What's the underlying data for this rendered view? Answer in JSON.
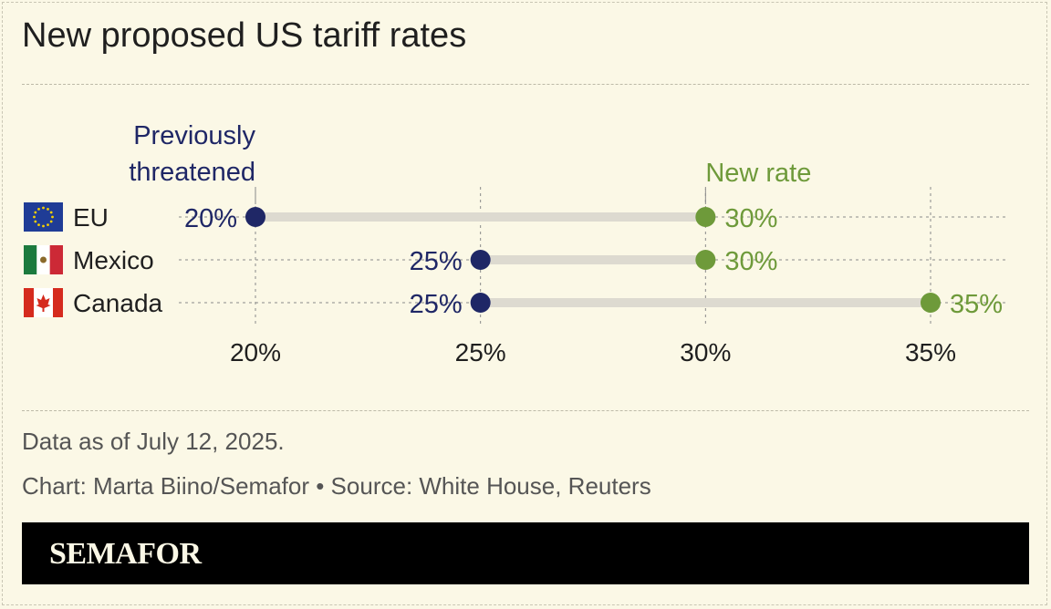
{
  "title": "New proposed US tariff rates",
  "colors": {
    "previous": "#1f2766",
    "new": "#6e9a3a",
    "bar": "#dddad0",
    "grid": "#8a8a8a",
    "axis_text": "#1f1f1f"
  },
  "annotations": {
    "previous_line1": "Previously",
    "previous_line2": "threatened",
    "new_rate": "New rate"
  },
  "chart_data": {
    "type": "dumbbell",
    "title": "New proposed US tariff rates",
    "categories": [
      "EU",
      "Mexico",
      "Canada"
    ],
    "flags": [
      "eu-flag-icon",
      "mexico-flag-icon",
      "canada-flag-icon"
    ],
    "series": [
      {
        "name": "Previously threatened",
        "values": [
          20,
          25,
          25
        ]
      },
      {
        "name": "New rate",
        "values": [
          30,
          30,
          35
        ]
      }
    ],
    "value_labels": {
      "previous": [
        "20%",
        "25%",
        "25%"
      ],
      "new": [
        "30%",
        "30%",
        "35%"
      ]
    },
    "xticks": [
      20,
      25,
      30,
      35
    ],
    "xtick_labels": [
      "20%",
      "25%",
      "30%",
      "35%"
    ],
    "xlim": [
      20,
      35
    ],
    "unit": "%"
  },
  "notes": {
    "data_as_of": "Data as of July 12, 2025.",
    "credit": "Chart: Marta Biino/Semafor • Source: White House, Reuters"
  },
  "brand": {
    "logo_text": "SEMAFOR"
  }
}
